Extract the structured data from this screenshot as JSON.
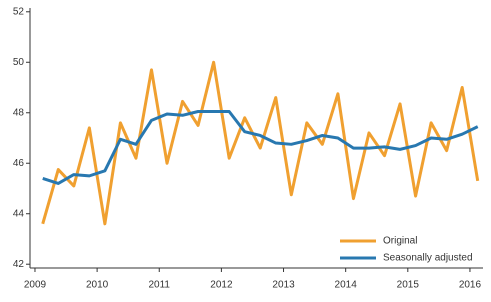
{
  "chart_data": {
    "type": "line",
    "x": [
      2009.125,
      2009.375,
      2009.625,
      2009.875,
      2010.125,
      2010.375,
      2010.625,
      2010.875,
      2011.125,
      2011.375,
      2011.625,
      2011.875,
      2012.125,
      2012.375,
      2012.625,
      2012.875,
      2013.125,
      2013.375,
      2013.625,
      2013.875,
      2014.125,
      2014.375,
      2014.625,
      2014.875,
      2015.125,
      2015.375,
      2015.625,
      2015.875,
      2016.125
    ],
    "series": [
      {
        "name": "Original",
        "color": "#f0a030",
        "values": [
          43.6,
          45.75,
          45.1,
          47.4,
          43.6,
          47.6,
          46.2,
          49.7,
          46.0,
          48.45,
          47.5,
          50.0,
          46.2,
          47.8,
          46.6,
          48.6,
          44.75,
          47.6,
          46.75,
          48.75,
          44.6,
          47.2,
          46.3,
          48.35,
          44.7,
          47.6,
          46.5,
          49.0,
          45.3
        ]
      },
      {
        "name": "Seasonally adjusted",
        "color": "#2878b0",
        "values": [
          45.4,
          45.2,
          45.55,
          45.5,
          45.7,
          46.95,
          46.75,
          47.7,
          47.95,
          47.9,
          48.05,
          48.05,
          48.05,
          47.25,
          47.1,
          46.8,
          46.75,
          46.9,
          47.1,
          47.0,
          46.6,
          46.6,
          46.65,
          46.55,
          46.7,
          47.0,
          46.95,
          47.15,
          47.45
        ]
      }
    ],
    "xlim": [
      2008.92,
      2016.21
    ],
    "xticks": [
      2009,
      2010,
      2011,
      2012,
      2013,
      2014,
      2015,
      2016
    ],
    "ylim": [
      41.85,
      52.15
    ],
    "yticks": [
      42,
      44,
      46,
      48,
      50,
      52
    ],
    "grid": false,
    "legend": "lower right"
  }
}
